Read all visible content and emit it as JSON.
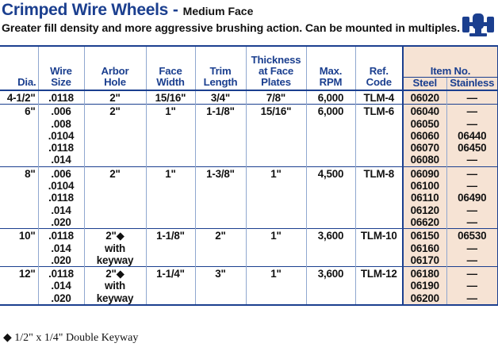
{
  "header": {
    "title": "Crimped Wire Wheels",
    "separator": " - ",
    "subtitle_label": "Medium Face",
    "description": "Greater fill density and more aggressive brushing action. Can be mounted in multiples."
  },
  "columns": {
    "dia": "Dia.",
    "wire_size": [
      "Wire",
      "Size"
    ],
    "arbor_hole": [
      "Arbor",
      "Hole"
    ],
    "face_width": [
      "Face",
      "Width"
    ],
    "trim_length": [
      "Trim",
      "Length"
    ],
    "thickness": [
      "Thickness",
      "at Face",
      "Plates"
    ],
    "max_rpm": [
      "Max.",
      "RPM"
    ],
    "ref_code": [
      "Ref.",
      "Code"
    ],
    "item_no": "Item No.",
    "steel": "Steel",
    "stainless": "Stainless"
  },
  "rows": [
    {
      "dia": "4-1/2\"",
      "wire": [
        ".0118"
      ],
      "arbor": [
        "2\""
      ],
      "face": "15/16\"",
      "trim": "3/4\"",
      "thickness": "7/8\"",
      "rpm": "6,000",
      "ref": "TLM-4",
      "steel": [
        "06020"
      ],
      "stainless": [
        "—"
      ]
    },
    {
      "dia": "6\"",
      "wire": [
        ".006",
        ".008",
        ".0104",
        ".0118",
        ".014"
      ],
      "arbor": [
        "2\""
      ],
      "face": "1\"",
      "trim": "1-1/8\"",
      "thickness": "15/16\"",
      "rpm": "6,000",
      "ref": "TLM-6",
      "steel": [
        "06040",
        "06050",
        "06060",
        "06070",
        "06080"
      ],
      "stainless": [
        "—",
        "—",
        "06440",
        "06450",
        "—"
      ]
    },
    {
      "dia": "8\"",
      "wire": [
        ".006",
        ".0104",
        ".0118",
        ".014",
        ".020"
      ],
      "arbor": [
        "2\""
      ],
      "face": "1\"",
      "trim": "1-3/8\"",
      "thickness": "1\"",
      "rpm": "4,500",
      "ref": "TLM-8",
      "steel": [
        "06090",
        "06100",
        "06110",
        "06120",
        "06620"
      ],
      "stainless": [
        "—",
        "—",
        "06490",
        "—",
        "—"
      ]
    },
    {
      "dia": "10\"",
      "wire": [
        ".0118",
        ".014",
        ".020"
      ],
      "arbor": [
        "2\"◆",
        "with",
        "keyway"
      ],
      "face": "1-1/8\"",
      "trim": "2\"",
      "thickness": "1\"",
      "rpm": "3,600",
      "ref": "TLM-10",
      "steel": [
        "06150",
        "06160",
        "06170"
      ],
      "stainless": [
        "06530",
        "—",
        "—"
      ]
    },
    {
      "dia": "12\"",
      "wire": [
        ".0118",
        ".014",
        ".020"
      ],
      "arbor": [
        "2\"◆",
        "with",
        "keyway"
      ],
      "face": "1-1/4\"",
      "trim": "3\"",
      "thickness": "1\"",
      "rpm": "3,600",
      "ref": "TLM-12",
      "steel": [
        "06180",
        "06190",
        "06200"
      ],
      "stainless": [
        "—",
        "—",
        "—"
      ]
    }
  ],
  "footnote": "◆ 1/2\" x 1/4\" Double Keyway",
  "icons": {
    "machine": "bench-grinder-icon"
  },
  "colors": {
    "heading": "#1b3f8f",
    "item_bg": "#f6e3d4",
    "rule": "#1b3f8f"
  }
}
